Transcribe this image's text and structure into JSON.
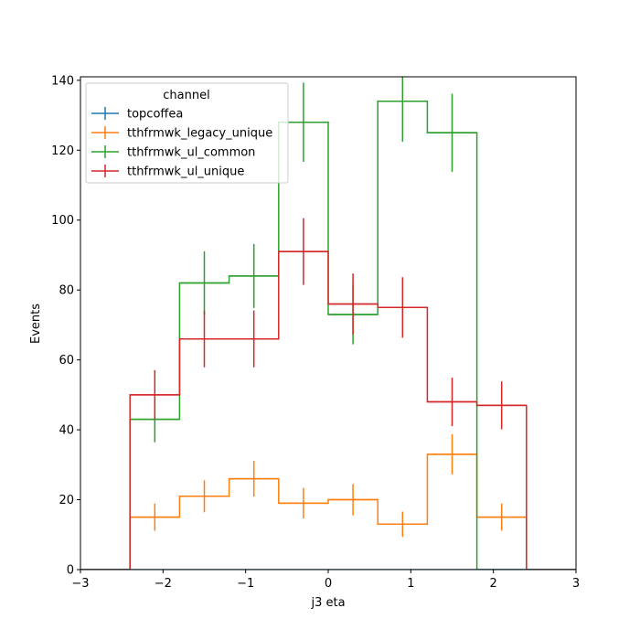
{
  "chart_data": {
    "type": "line",
    "style": "step-histogram-with-errorbars",
    "title": "",
    "xlabel": "j3 eta",
    "ylabel": "Events",
    "xlim": [
      -3,
      3
    ],
    "ylim": [
      0,
      141
    ],
    "x_ticks": [
      "−3",
      "−2",
      "−1",
      "0",
      "1",
      "2",
      "3"
    ],
    "y_ticks": [
      "0",
      "20",
      "40",
      "60",
      "80",
      "100",
      "120",
      "140"
    ],
    "grid": false,
    "legend": {
      "title": "channel",
      "placement": "top-left"
    },
    "bin_edges": [
      -3.0,
      -2.4,
      -1.8,
      -1.2,
      -0.6,
      0.0,
      0.6,
      1.2,
      1.8,
      2.4,
      3.0
    ],
    "series": [
      {
        "name": "topcoffea",
        "color": "#1f77b4",
        "values": [
          0,
          0,
          0,
          0,
          0,
          0,
          0,
          0,
          0,
          0
        ]
      },
      {
        "name": "tthfrmwk_legacy_unique",
        "color": "#ff7f0e",
        "values": [
          0,
          15,
          21,
          26,
          19,
          20,
          13,
          33,
          15,
          0
        ]
      },
      {
        "name": "tthfrmwk_ul_common",
        "color": "#2ca02c",
        "values": [
          0,
          43,
          82,
          84,
          128,
          73,
          134,
          125,
          0,
          0
        ]
      },
      {
        "name": "tthfrmwk_ul_unique",
        "color": "#d62728",
        "values": [
          0,
          50,
          66,
          66,
          91,
          76,
          75,
          48,
          47,
          0
        ]
      }
    ]
  }
}
